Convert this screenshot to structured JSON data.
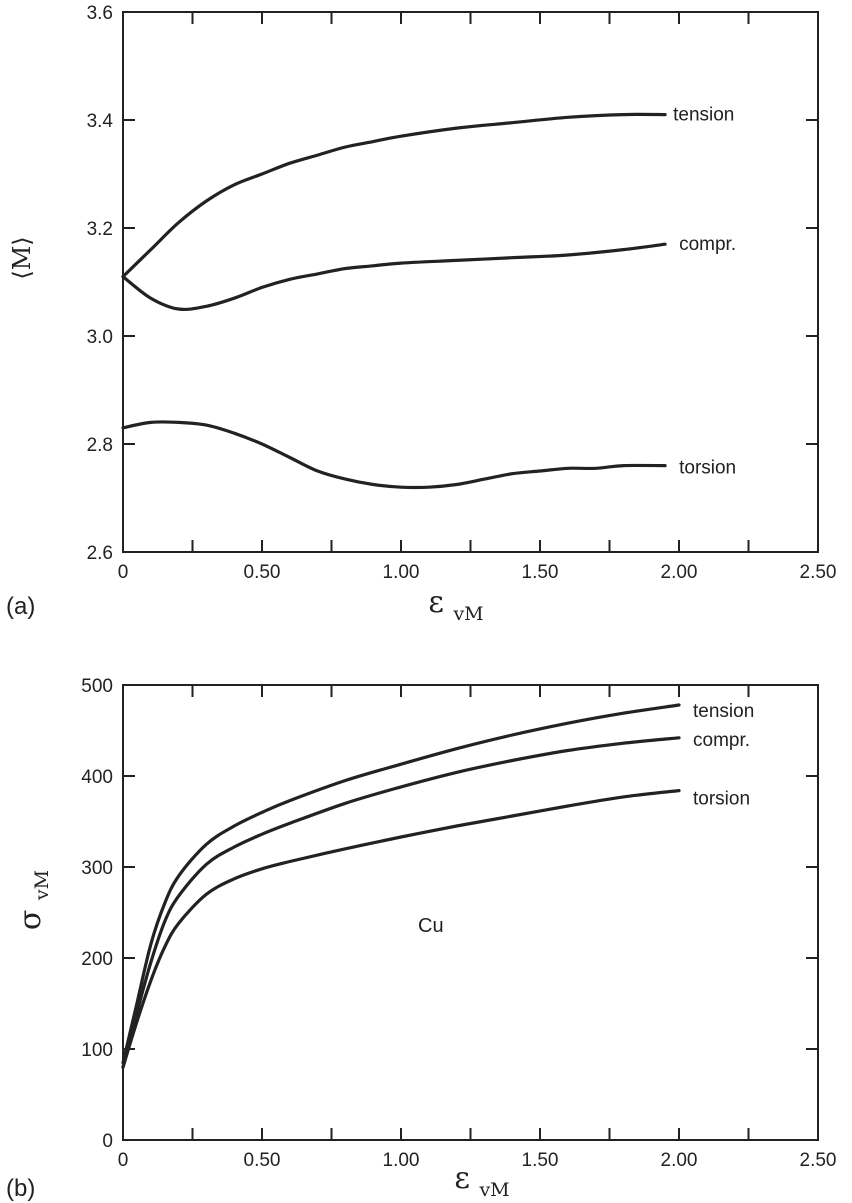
{
  "chart_data": [
    {
      "panel": "(a)",
      "type": "line",
      "ylabel": "⟨M⟩",
      "xlabel": {
        "symbol": "ε",
        "subscript": "vM"
      },
      "xlim": [
        0,
        2.5
      ],
      "ylim": [
        2.6,
        3.6
      ],
      "xticks": [
        0,
        0.5,
        1.0,
        1.5,
        2.0,
        2.5
      ],
      "xtick_labels": [
        "0",
        "0.50",
        "1.00",
        "1.50",
        "2.00",
        "2.50"
      ],
      "yticks": [
        2.6,
        2.8,
        3.0,
        3.2,
        3.4,
        3.6
      ],
      "ytick_labels": [
        "2.6",
        "2.8",
        "3.0",
        "3.2",
        "3.4",
        "3.6"
      ],
      "grid": false,
      "series": [
        {
          "name": "tension",
          "x": [
            0,
            0.1,
            0.2,
            0.3,
            0.4,
            0.5,
            0.6,
            0.7,
            0.8,
            0.9,
            1.0,
            1.2,
            1.4,
            1.6,
            1.8,
            1.95
          ],
          "y": [
            3.11,
            3.16,
            3.21,
            3.25,
            3.28,
            3.3,
            3.32,
            3.335,
            3.35,
            3.36,
            3.37,
            3.385,
            3.395,
            3.405,
            3.41,
            3.41
          ]
        },
        {
          "name": "compr.",
          "x": [
            0,
            0.1,
            0.2,
            0.3,
            0.4,
            0.5,
            0.6,
            0.7,
            0.8,
            0.9,
            1.0,
            1.2,
            1.4,
            1.6,
            1.8,
            1.95
          ],
          "y": [
            3.11,
            3.07,
            3.05,
            3.055,
            3.07,
            3.09,
            3.105,
            3.115,
            3.125,
            3.13,
            3.135,
            3.14,
            3.145,
            3.15,
            3.16,
            3.17
          ]
        },
        {
          "name": "torsion",
          "x": [
            0,
            0.1,
            0.2,
            0.3,
            0.4,
            0.5,
            0.6,
            0.7,
            0.8,
            0.9,
            1.0,
            1.1,
            1.2,
            1.3,
            1.4,
            1.5,
            1.6,
            1.7,
            1.8,
            1.95
          ],
          "y": [
            2.83,
            2.84,
            2.84,
            2.835,
            2.82,
            2.8,
            2.775,
            2.75,
            2.735,
            2.725,
            2.72,
            2.72,
            2.725,
            2.735,
            2.745,
            2.75,
            2.755,
            2.755,
            2.76,
            2.76
          ]
        }
      ]
    },
    {
      "panel": "(b)",
      "type": "line",
      "ylabel": {
        "symbol": "σ",
        "subscript": "vM"
      },
      "xlabel": {
        "symbol": "ε",
        "subscript": "vM"
      },
      "xlim": [
        0,
        2.5
      ],
      "ylim": [
        0,
        500
      ],
      "xticks": [
        0,
        0.5,
        1.0,
        1.5,
        2.0,
        2.5
      ],
      "xtick_labels": [
        "0",
        "0.50",
        "1.00",
        "1.50",
        "2.00",
        "2.50"
      ],
      "yticks": [
        0,
        100,
        200,
        300,
        400,
        500
      ],
      "ytick_labels": [
        "0",
        "100",
        "200",
        "300",
        "400",
        "500"
      ],
      "grid": false,
      "annotation": "Cu",
      "series": [
        {
          "name": "tension",
          "x": [
            0,
            0.05,
            0.1,
            0.15,
            0.2,
            0.3,
            0.4,
            0.5,
            0.6,
            0.8,
            1.0,
            1.2,
            1.4,
            1.6,
            1.8,
            2.0
          ],
          "y": [
            85,
            150,
            215,
            260,
            290,
            325,
            345,
            360,
            373,
            395,
            413,
            430,
            445,
            458,
            469,
            478
          ]
        },
        {
          "name": "compr.",
          "x": [
            0,
            0.05,
            0.1,
            0.15,
            0.2,
            0.3,
            0.4,
            0.5,
            0.6,
            0.8,
            1.0,
            1.2,
            1.4,
            1.6,
            1.8,
            2.0
          ],
          "y": [
            80,
            140,
            195,
            240,
            268,
            303,
            322,
            336,
            348,
            370,
            388,
            404,
            417,
            428,
            436,
            442
          ]
        },
        {
          "name": "torsion",
          "x": [
            0,
            0.05,
            0.1,
            0.15,
            0.2,
            0.3,
            0.4,
            0.5,
            0.6,
            0.8,
            1.0,
            1.2,
            1.4,
            1.6,
            1.8,
            2.0
          ],
          "y": [
            80,
            130,
            175,
            212,
            238,
            270,
            287,
            298,
            306,
            320,
            333,
            345,
            356,
            367,
            377,
            384
          ]
        }
      ]
    }
  ]
}
